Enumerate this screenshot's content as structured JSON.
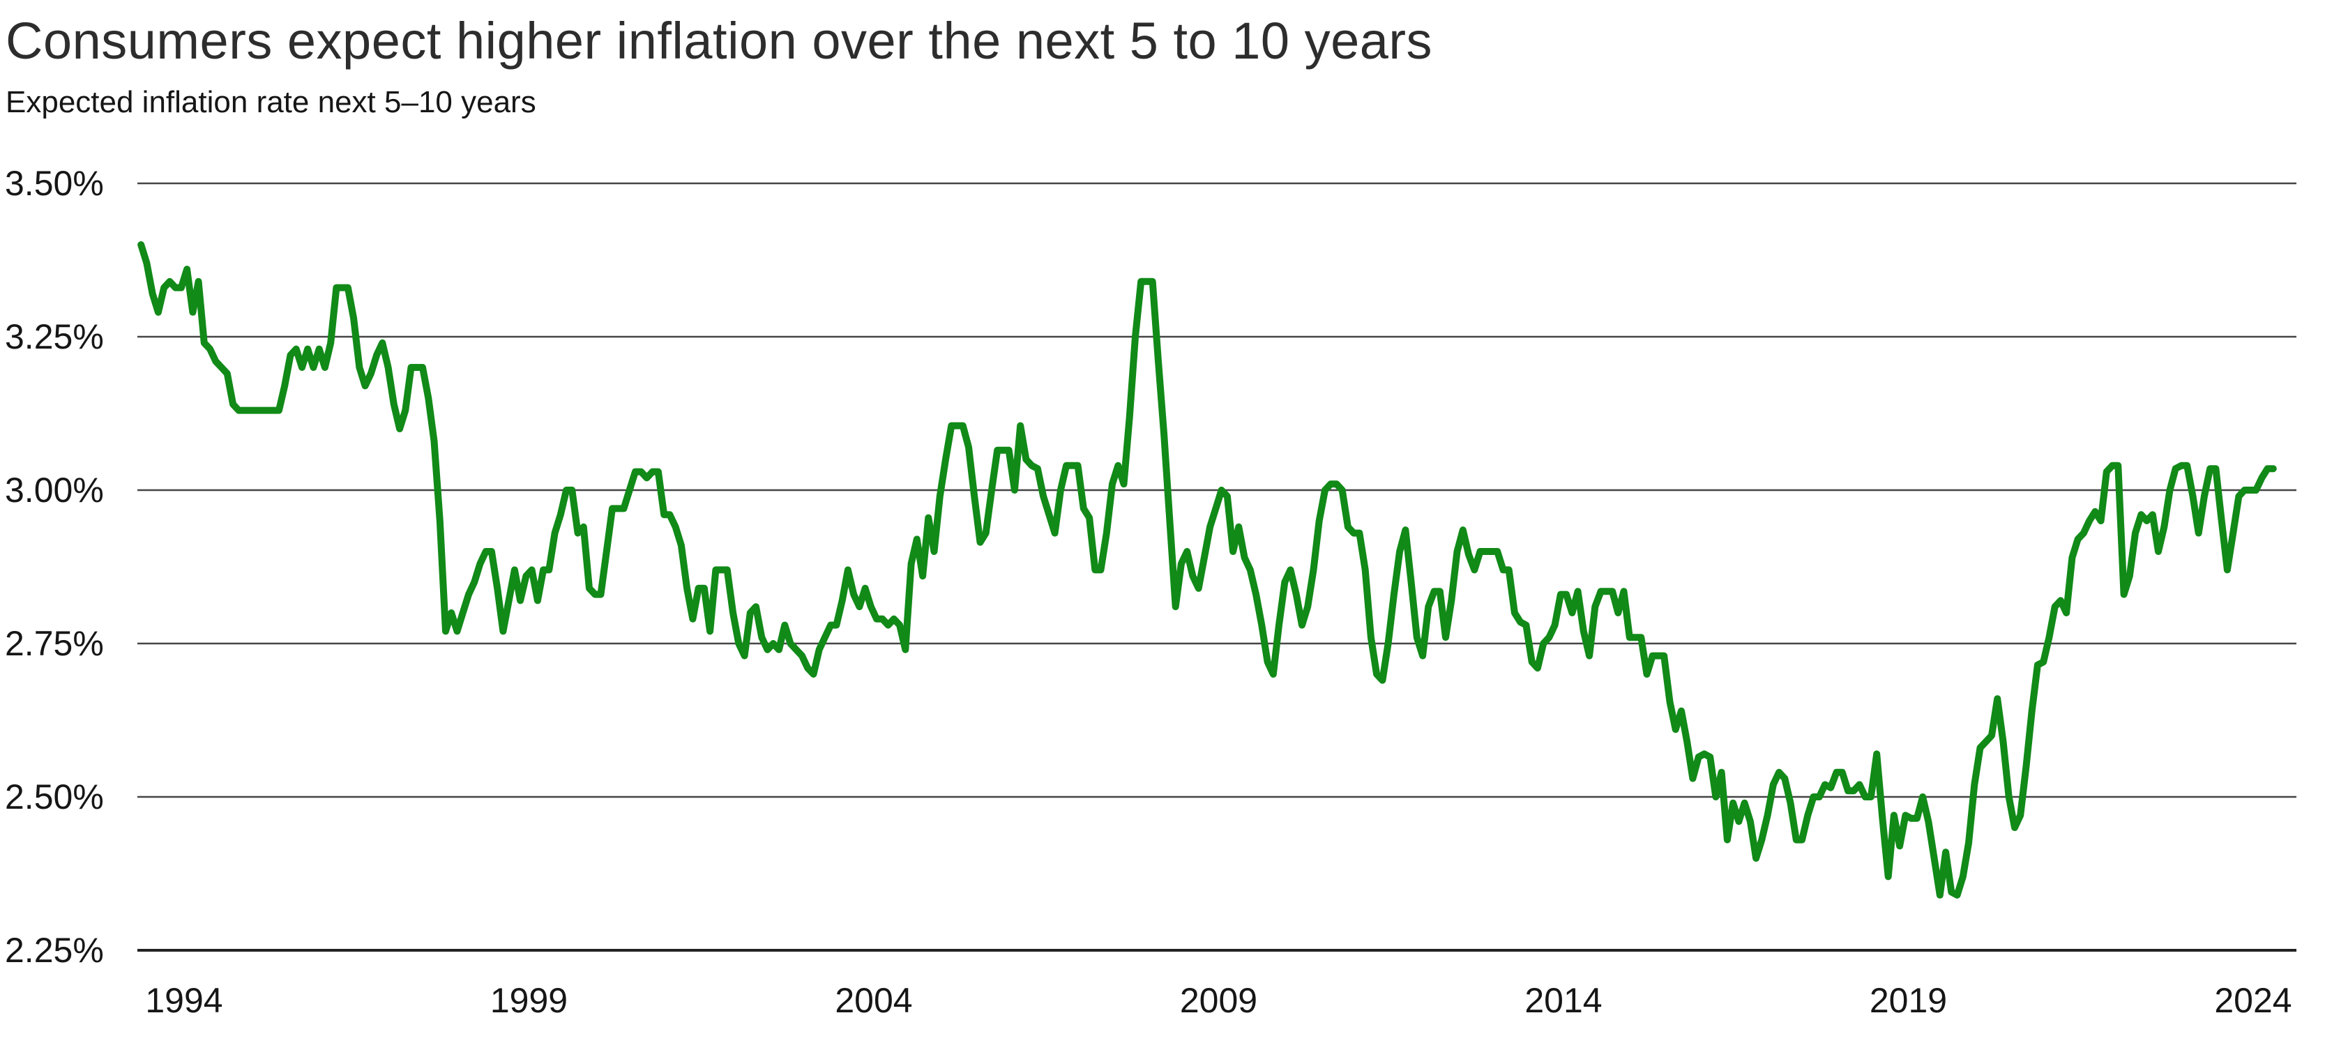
{
  "header": {
    "title": "Consumers expect higher inflation over the next 5 to 10 years",
    "subtitle": "Expected inflation rate next 5–10 years"
  },
  "chart_data": {
    "type": "line",
    "title": "Consumers expect higher inflation over the next 5 to 10 years",
    "subtitle": "Expected inflation rate next 5–10 years",
    "series_name": "Expected inflation rate next 5–10 years",
    "line_color": "#118a18",
    "grid_color": "#454545",
    "axis_color": "#222222",
    "text_color": "#161616",
    "frequency": "monthly",
    "x_start_year": 1993,
    "x_start_month": 5,
    "x_end_year": 2024,
    "x_end_month": 4,
    "xlim": [
      1993.3,
      2024.45
    ],
    "ylim": [
      2.25,
      3.5
    ],
    "grid": "horizontal-only",
    "legend": "none",
    "x_ticks": [
      1994,
      1999,
      2004,
      2009,
      2014,
      2019,
      2024
    ],
    "y_ticks": [
      {
        "value": 3.5,
        "label": "3.50%"
      },
      {
        "value": 3.25,
        "label": "3.25%"
      },
      {
        "value": 3.0,
        "label": "3.00%"
      },
      {
        "value": 2.75,
        "label": "2.75%"
      },
      {
        "value": 2.5,
        "label": "2.50%"
      },
      {
        "value": 2.25,
        "label": "2.25%"
      }
    ],
    "values": [
      3.4,
      3.37,
      3.32,
      3.29,
      3.33,
      3.34,
      3.33,
      3.33,
      3.36,
      3.29,
      3.34,
      3.24,
      3.23,
      3.21,
      3.2,
      3.19,
      3.14,
      3.13,
      3.13,
      3.13,
      3.13,
      3.13,
      3.13,
      3.13,
      3.13,
      3.17,
      3.22,
      3.23,
      3.2,
      3.23,
      3.2,
      3.23,
      3.2,
      3.24,
      3.33,
      3.33,
      3.33,
      3.28,
      3.2,
      3.17,
      3.19,
      3.22,
      3.24,
      3.2,
      3.14,
      3.1,
      3.13,
      3.2,
      3.2,
      3.2,
      3.15,
      3.08,
      2.95,
      2.77,
      2.8,
      2.77,
      2.8,
      2.83,
      2.85,
      2.88,
      2.9,
      2.9,
      2.84,
      2.77,
      2.82,
      2.87,
      2.82,
      2.86,
      2.87,
      2.82,
      2.87,
      2.87,
      2.93,
      2.96,
      3.0,
      3.0,
      2.93,
      2.94,
      2.84,
      2.83,
      2.83,
      2.9,
      2.97,
      2.97,
      2.97,
      3.0,
      3.03,
      3.03,
      3.02,
      3.03,
      3.03,
      2.96,
      2.96,
      2.94,
      2.91,
      2.84,
      2.79,
      2.84,
      2.84,
      2.77,
      2.87,
      2.87,
      2.87,
      2.8,
      2.75,
      2.73,
      2.8,
      2.81,
      2.76,
      2.74,
      2.75,
      2.74,
      2.78,
      2.75,
      2.74,
      2.73,
      2.71,
      2.7,
      2.74,
      2.76,
      2.78,
      2.78,
      2.82,
      2.87,
      2.83,
      2.81,
      2.84,
      2.81,
      2.79,
      2.79,
      2.78,
      2.79,
      2.78,
      2.74,
      2.88,
      2.92,
      2.86,
      2.955,
      2.9,
      2.99,
      3.05,
      3.105,
      3.105,
      3.105,
      3.07,
      2.99,
      2.915,
      2.93,
      3.0,
      3.065,
      3.065,
      3.065,
      3.0,
      3.105,
      3.05,
      3.04,
      3.035,
      2.99,
      2.96,
      2.93,
      3.0,
      3.04,
      3.04,
      3.04,
      2.97,
      2.955,
      2.87,
      2.87,
      2.93,
      3.01,
      3.04,
      3.01,
      3.12,
      3.25,
      3.34,
      3.34,
      3.34,
      3.21,
      3.09,
      2.95,
      2.81,
      2.88,
      2.9,
      2.86,
      2.84,
      2.89,
      2.94,
      2.97,
      3.0,
      2.99,
      2.9,
      2.94,
      2.89,
      2.87,
      2.83,
      2.78,
      2.72,
      2.7,
      2.78,
      2.85,
      2.87,
      2.83,
      2.78,
      2.81,
      2.87,
      2.95,
      3.0,
      3.01,
      3.01,
      3.0,
      2.94,
      2.93,
      2.93,
      2.87,
      2.76,
      2.7,
      2.69,
      2.75,
      2.83,
      2.9,
      2.935,
      2.85,
      2.76,
      2.73,
      2.81,
      2.835,
      2.835,
      2.76,
      2.82,
      2.9,
      2.935,
      2.895,
      2.87,
      2.9,
      2.9,
      2.9,
      2.9,
      2.87,
      2.87,
      2.8,
      2.785,
      2.78,
      2.72,
      2.71,
      2.75,
      2.76,
      2.78,
      2.83,
      2.83,
      2.8,
      2.835,
      2.77,
      2.73,
      2.81,
      2.835,
      2.835,
      2.835,
      2.8,
      2.835,
      2.76,
      2.76,
      2.76,
      2.7,
      2.73,
      2.73,
      2.73,
      2.655,
      2.61,
      2.64,
      2.59,
      2.53,
      2.565,
      2.57,
      2.565,
      2.5,
      2.54,
      2.43,
      2.49,
      2.46,
      2.49,
      2.46,
      2.4,
      2.43,
      2.47,
      2.52,
      2.54,
      2.53,
      2.49,
      2.43,
      2.43,
      2.47,
      2.5,
      2.5,
      2.52,
      2.515,
      2.54,
      2.54,
      2.51,
      2.51,
      2.52,
      2.5,
      2.5,
      2.57,
      2.465,
      2.37,
      2.47,
      2.42,
      2.47,
      2.465,
      2.465,
      2.5,
      2.46,
      2.4,
      2.34,
      2.41,
      2.345,
      2.34,
      2.37,
      2.425,
      2.52,
      2.58,
      2.59,
      2.6,
      2.66,
      2.59,
      2.5,
      2.45,
      2.47,
      2.55,
      2.64,
      2.715,
      2.72,
      2.76,
      2.81,
      2.82,
      2.8,
      2.89,
      2.92,
      2.93,
      2.95,
      2.965,
      2.95,
      3.03,
      3.04,
      3.04,
      2.83,
      2.86,
      2.93,
      2.96,
      2.95,
      2.96,
      2.9,
      2.94,
      3.0,
      3.035,
      3.04,
      3.04,
      2.99,
      2.93,
      2.99,
      3.035,
      3.035,
      2.95,
      2.87,
      2.93,
      2.99,
      3.0,
      3.0,
      3.0,
      3.02,
      3.035,
      3.035
    ]
  }
}
